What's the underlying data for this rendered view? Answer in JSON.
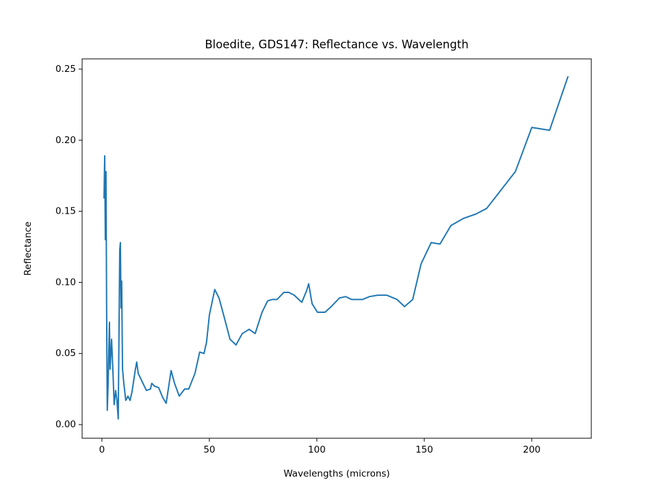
{
  "chart_data": {
    "type": "line",
    "title": "Bloedite, GDS147: Reflectance vs. Wavelength",
    "xlabel": "Wavelengths (microns)",
    "ylabel": "Reflectance",
    "xlim": [
      -9.2,
      227.7
    ],
    "ylim": [
      -0.0096,
      0.2572
    ],
    "xticks": [
      0,
      50,
      100,
      150,
      200
    ],
    "yticks": [
      {
        "value": 0,
        "label": "0.00"
      },
      {
        "value": 0.05,
        "label": "0.05"
      },
      {
        "value": 0.1,
        "label": "0.10"
      },
      {
        "value": 0.15,
        "label": "0.15"
      },
      {
        "value": 0.2,
        "label": "0.20"
      },
      {
        "value": 0.25,
        "label": "0.25"
      }
    ],
    "grid": false,
    "series": [
      {
        "color": "#1f77b4",
        "x": [
          1.0,
          1.3,
          1.6,
          1.9,
          2.2,
          2.5,
          2.9,
          3.5,
          3.8,
          4.5,
          5.1,
          5.7,
          6.4,
          7.0,
          7.6,
          8.3,
          8.6,
          8.9,
          9.2,
          9.6,
          10.2,
          11.1,
          12.1,
          13.1,
          14.0,
          15.6,
          16.2,
          16.9,
          18.8,
          20.7,
          22.6,
          23.2,
          24.5,
          26.4,
          28.3,
          29.9,
          32.2,
          33.8,
          36.0,
          38.5,
          40.4,
          43.3,
          45.5,
          47.5,
          48.7,
          50,
          52.5,
          54.5,
          57,
          59.6,
          62.4,
          65.3,
          68.5,
          71.3,
          74.5,
          77.1,
          79.3,
          81.5,
          84.7,
          86.9,
          89.5,
          93.0,
          95.2,
          96.2,
          97.8,
          100.3,
          103.8,
          106.7,
          110.5,
          113.4,
          116.2,
          121.3,
          124.5,
          128.3,
          132.5,
          137.3,
          140.8,
          144.6,
          148.5,
          153.2,
          157.3,
          162.4,
          168.2,
          173.9,
          179.0,
          185.7,
          192.4,
          200.0,
          208.3,
          216.9
        ],
        "values": [
          0.159,
          0.189,
          0.13,
          0.178,
          0.082,
          0.01,
          0.029,
          0.072,
          0.039,
          0.06,
          0.039,
          0.014,
          0.024,
          0.017,
          0.004,
          0.123,
          0.128,
          0.082,
          0.101,
          0.039,
          0.029,
          0.017,
          0.02,
          0.017,
          0.023,
          0.039,
          0.044,
          0.036,
          0.03,
          0.024,
          0.025,
          0.029,
          0.027,
          0.026,
          0.019,
          0.015,
          0.038,
          0.029,
          0.02,
          0.025,
          0.025,
          0.036,
          0.051,
          0.05,
          0.058,
          0.077,
          0.095,
          0.089,
          0.075,
          0.06,
          0.056,
          0.064,
          0.067,
          0.064,
          0.079,
          0.087,
          0.088,
          0.088,
          0.093,
          0.093,
          0.091,
          0.086,
          0.094,
          0.099,
          0.085,
          0.079,
          0.079,
          0.083,
          0.089,
          0.09,
          0.088,
          0.088,
          0.09,
          0.091,
          0.091,
          0.088,
          0.083,
          0.088,
          0.113,
          0.128,
          0.127,
          0.14,
          0.145,
          0.148,
          0.152,
          0.165,
          0.178,
          0.209,
          0.207,
          0.245
        ]
      }
    ]
  }
}
